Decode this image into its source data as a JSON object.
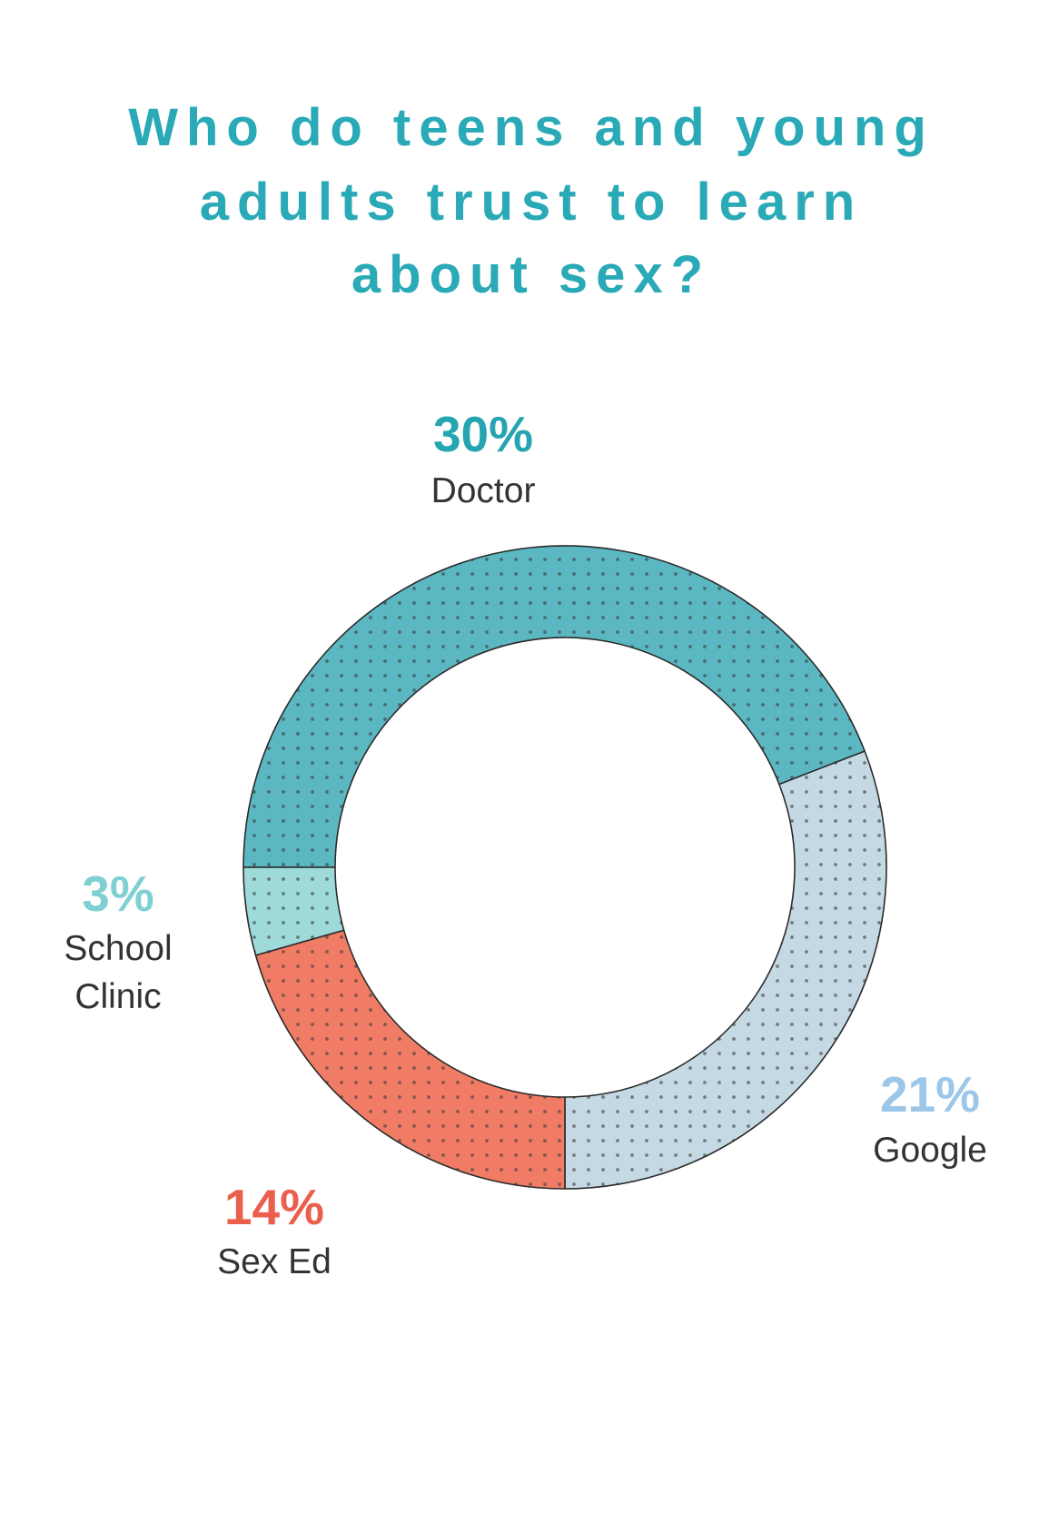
{
  "title_lines": [
    "Who do teens and young",
    "adults trust to learn",
    "about sex?"
  ],
  "chart_data": {
    "type": "pie",
    "title": "Who do teens and young adults trust to learn about sex?",
    "donut": true,
    "unit": "%",
    "slices": [
      {
        "label": "Doctor",
        "value": 30,
        "display": "30%",
        "color": "#5bb7c1",
        "label_color": "#25a4b1",
        "label_lines": [
          "Doctor"
        ]
      },
      {
        "label": "Google",
        "value": 21,
        "display": "21%",
        "color": "#c5d9e4",
        "label_color": "#9cc7e8",
        "label_lines": [
          "Google"
        ]
      },
      {
        "label": "Sex Ed",
        "value": 14,
        "display": "14%",
        "color": "#f07c66",
        "label_color": "#eb5f4d",
        "label_lines": [
          "Sex Ed"
        ]
      },
      {
        "label": "School Clinic",
        "value": 3,
        "display": "3%",
        "color": "#9ddad9",
        "label_color": "#7fcfd3",
        "label_lines": [
          "School",
          "Clinic"
        ]
      }
    ]
  }
}
